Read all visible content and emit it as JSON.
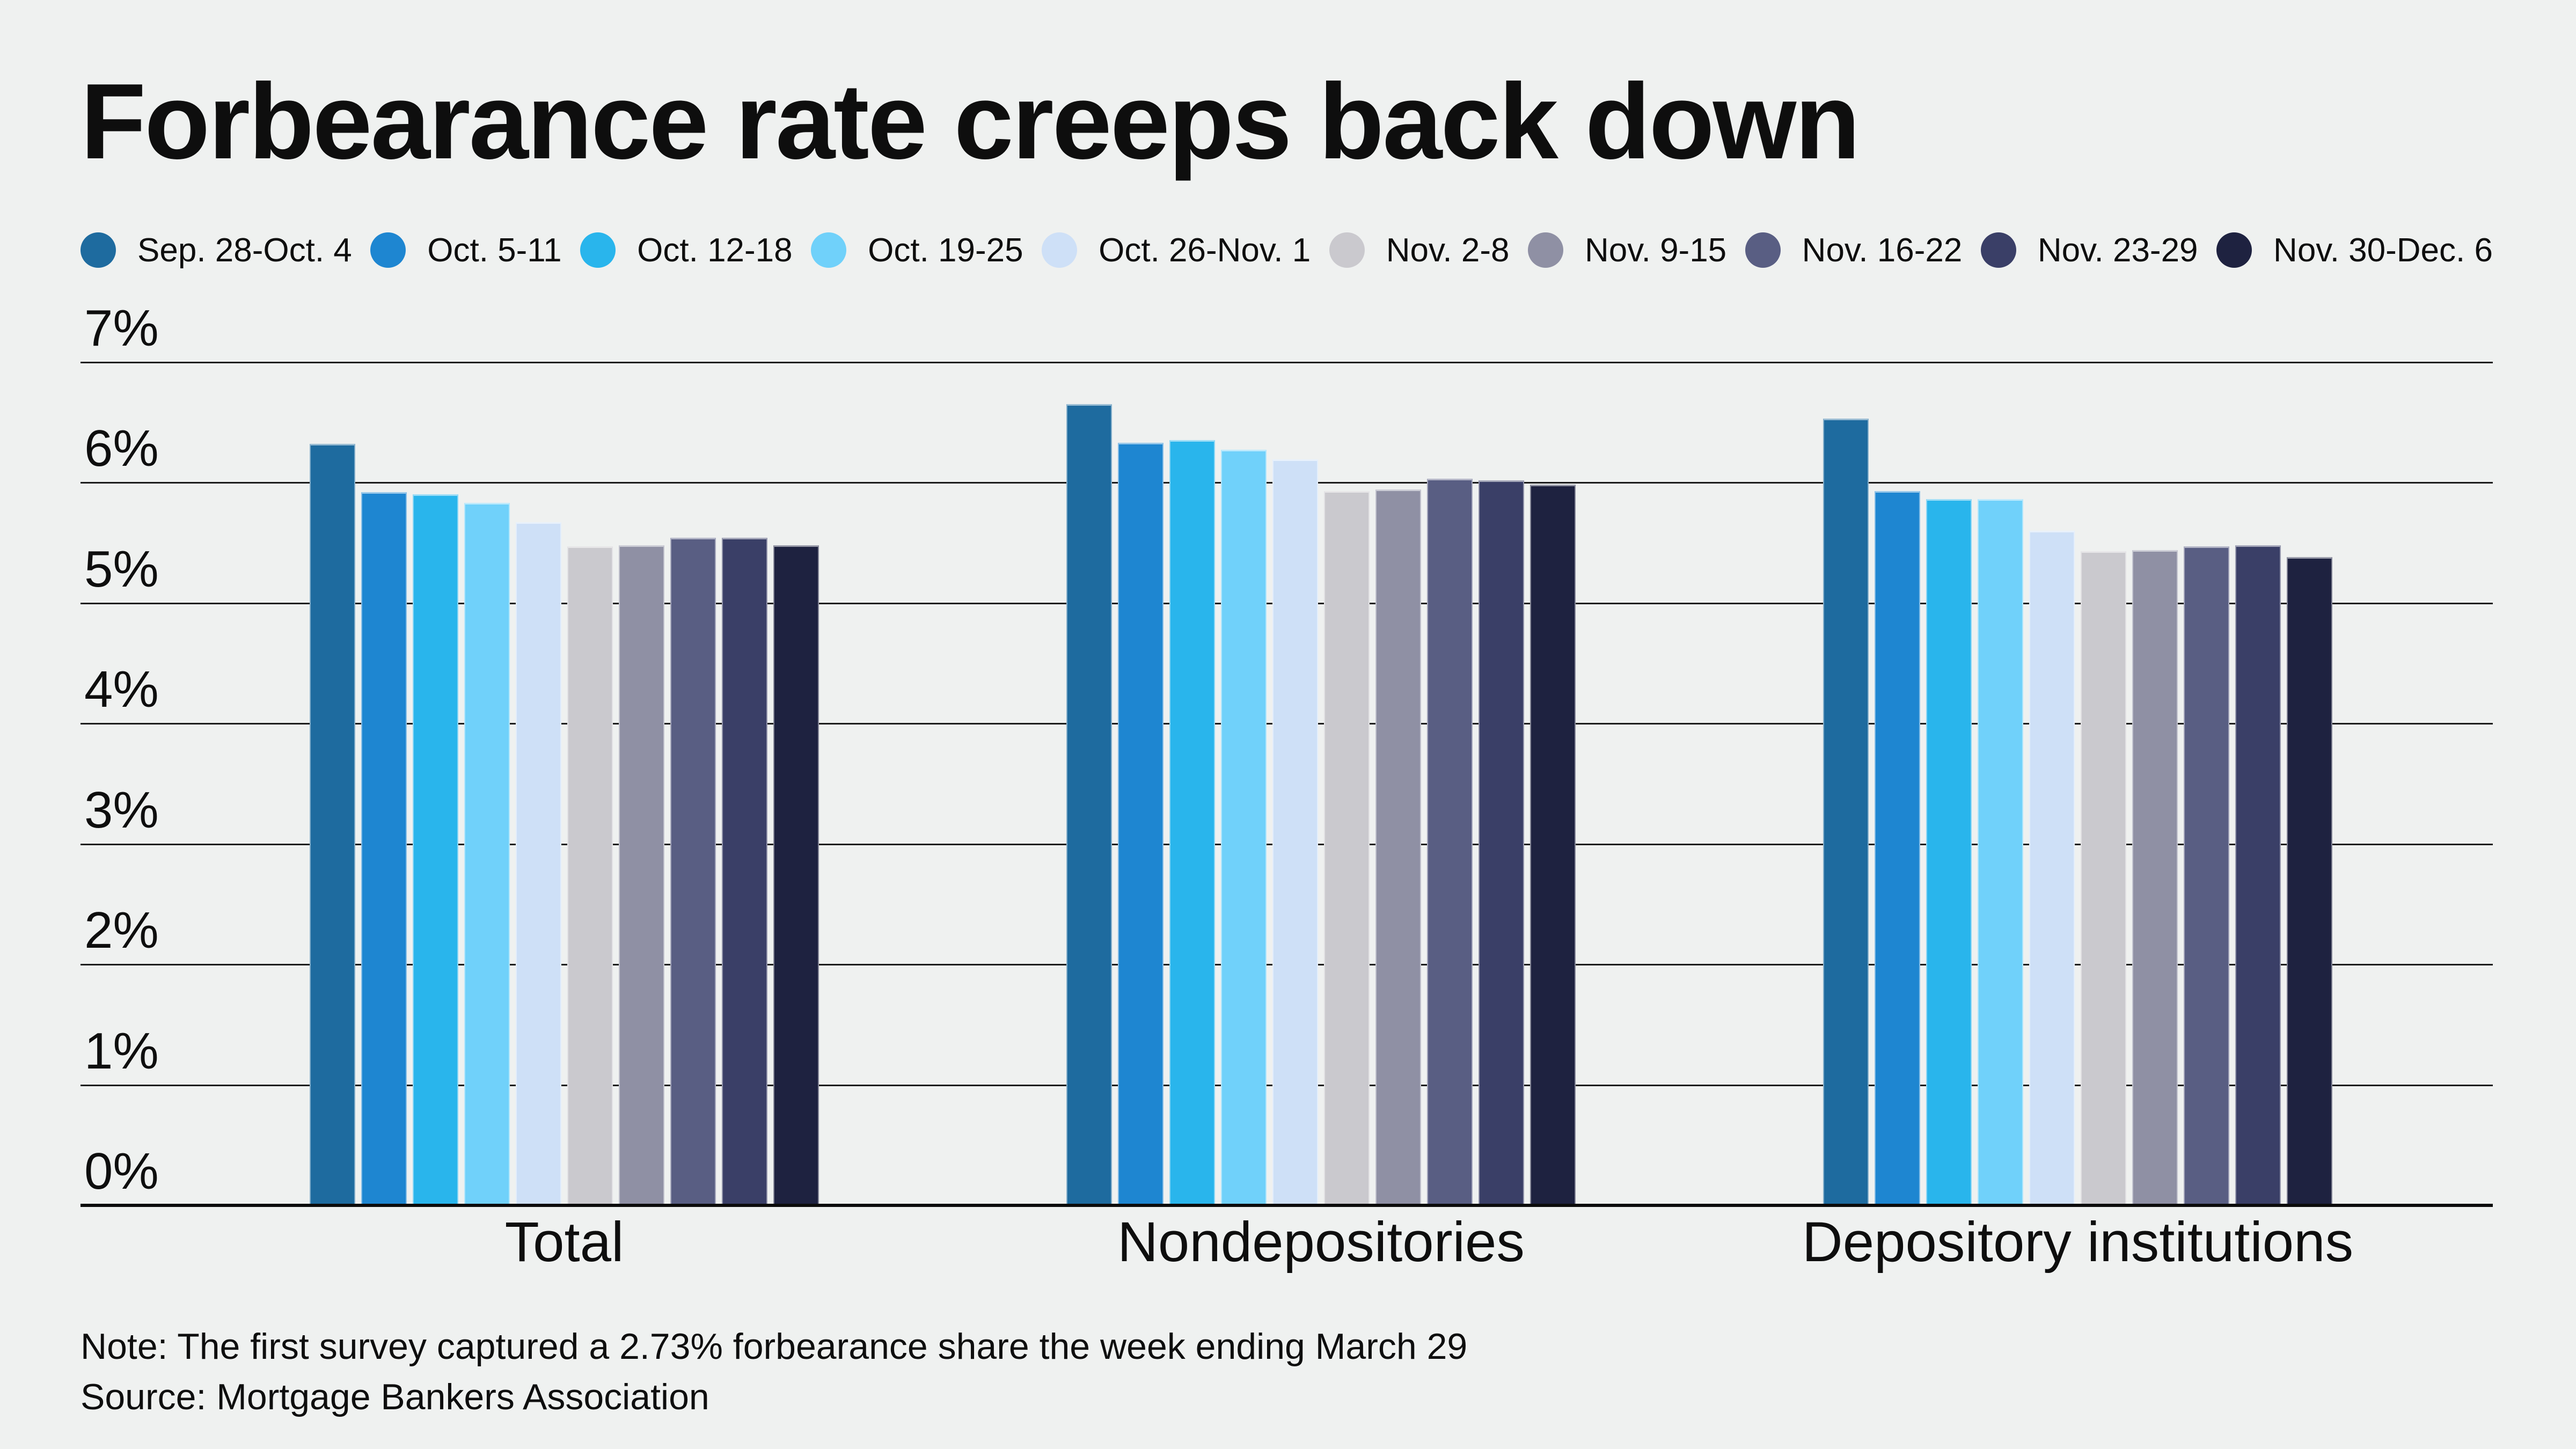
{
  "page": {
    "background": "#eff1f0",
    "text_color": "#0e0e0e",
    "gridline_color": "#1c1c1c",
    "baseline_color": "#0c0c0c"
  },
  "title": "Forbearance rate creeps back down",
  "chart_data": {
    "type": "bar",
    "title": "Forbearance rate creeps back down",
    "categories": [
      "Total",
      "Nondepositories",
      "Depository institutions"
    ],
    "series": [
      {
        "name": "Sep. 28-Oct. 4",
        "color": "#1e6b9f",
        "values": [
          6.32,
          6.65,
          6.53
        ]
      },
      {
        "name": "Oct. 5-11",
        "color": "#1e86d1",
        "values": [
          5.92,
          6.33,
          5.93
        ]
      },
      {
        "name": "Oct. 12-18",
        "color": "#29b5ec",
        "values": [
          5.9,
          6.35,
          5.86
        ]
      },
      {
        "name": "Oct. 19-25",
        "color": "#70d1fa",
        "values": [
          5.83,
          6.27,
          5.86
        ]
      },
      {
        "name": "Oct. 26-Nov. 1",
        "color": "#cee0f7",
        "values": [
          5.67,
          6.19,
          5.6
        ]
      },
      {
        "name": "Nov. 2-8",
        "color": "#cac9ce",
        "values": [
          5.47,
          5.93,
          5.43
        ]
      },
      {
        "name": "Nov. 9-15",
        "color": "#8f90a4",
        "values": [
          5.48,
          5.94,
          5.44
        ]
      },
      {
        "name": "Nov. 16-22",
        "color": "#595e83",
        "values": [
          5.54,
          6.03,
          5.47
        ]
      },
      {
        "name": "Nov. 23-29",
        "color": "#3a3f67",
        "values": [
          5.54,
          6.02,
          5.48
        ]
      },
      {
        "name": "Nov. 30-Dec. 6",
        "color": "#1e2240",
        "values": [
          5.48,
          5.98,
          5.38
        ]
      }
    ],
    "xlabel": "",
    "ylabel": "",
    "ylim": [
      0,
      7
    ],
    "y_ticks": [
      "7%",
      "6%",
      "5%",
      "4%",
      "3%",
      "2%",
      "1%",
      "0%"
    ],
    "grid": "horizontal",
    "legend_position": "top"
  },
  "note": "Note: The first survey captured a 2.73% forbearance share the week ending March 29",
  "source": "Source: Mortgage Bankers Association"
}
